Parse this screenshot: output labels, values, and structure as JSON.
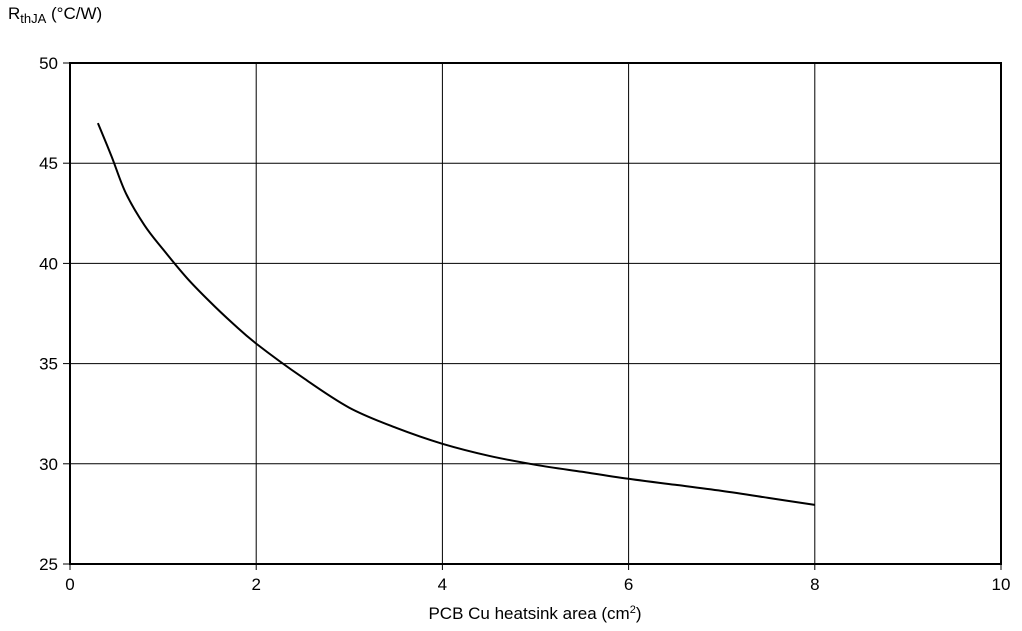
{
  "chart_data": {
    "type": "line",
    "title": "",
    "ylabel": {
      "main": "R",
      "sub": "thJA",
      "unit": " (°C/W)"
    },
    "xlabel": {
      "main": "PCB Cu heatsink area (cm",
      "sup": "2",
      "end": ")"
    },
    "xlim": [
      0,
      10
    ],
    "ylim": [
      25,
      50
    ],
    "x_ticks": [
      0,
      2,
      4,
      6,
      8,
      10
    ],
    "x_tick_labels": [
      "0",
      "2",
      "4",
      "6",
      "8",
      "10"
    ],
    "y_ticks": [
      25,
      30,
      35,
      40,
      45,
      50
    ],
    "y_tick_labels": [
      "25",
      "30",
      "35",
      "40",
      "45",
      "50"
    ],
    "grid": true,
    "series": [
      {
        "x": [
          0.3,
          0.45,
          0.6,
          0.8,
          1.0,
          1.25,
          1.5,
          1.75,
          2.0,
          2.5,
          3.0,
          3.5,
          4.0,
          4.5,
          5.0,
          5.5,
          6.0,
          6.5,
          7.0,
          7.5,
          8.0
        ],
        "y": [
          47.0,
          45.3,
          43.5,
          41.9,
          40.7,
          39.3,
          38.1,
          37.0,
          36.0,
          34.3,
          32.8,
          31.8,
          31.0,
          30.4,
          29.95,
          29.6,
          29.25,
          28.95,
          28.65,
          28.3,
          27.95
        ]
      }
    ],
    "colors": {
      "line": "#000000",
      "grid": "#000000",
      "background": "#ffffff"
    }
  }
}
